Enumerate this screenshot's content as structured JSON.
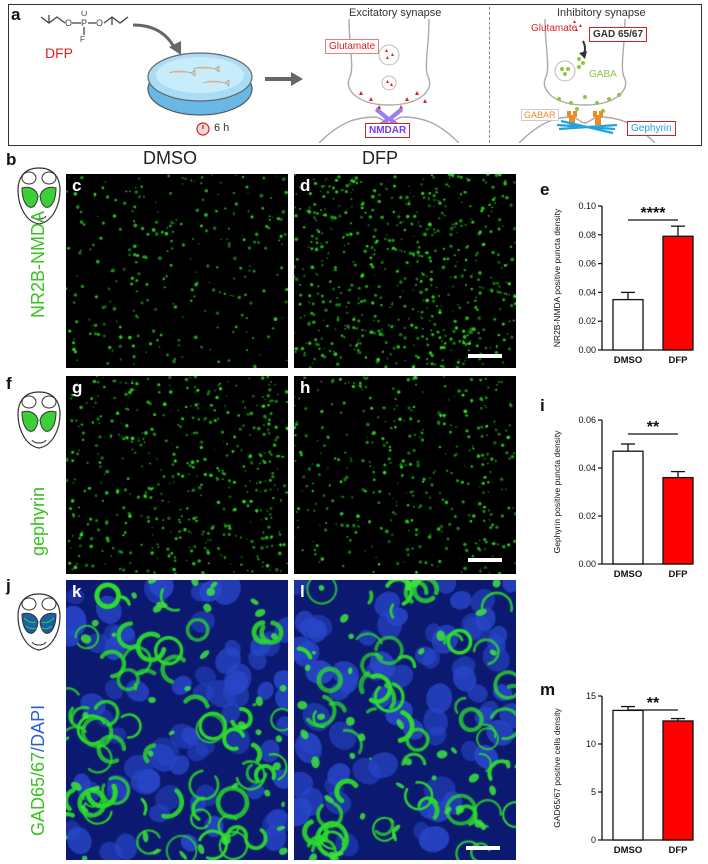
{
  "panel_a": {
    "letter": "a",
    "dfp_label": "DFP",
    "dfp_f": "F",
    "duration": "6 h",
    "excitatory_title": "Excitatory synapse",
    "inhibitory_title": "Inhibitory synapse",
    "glutamate_exc": "Glutamate",
    "glutamate_inh": "Glutamate",
    "nmdar": "NMDAR",
    "gad": "GAD 65/67",
    "gaba": "GABA",
    "gabar": "GABAR",
    "gephyrin": "Gephyrin",
    "colors": {
      "red": "#d92020",
      "green": "#8dc63f",
      "purple": "#8b5cf6",
      "orange": "#f08a24",
      "blue": "#1fa3e0"
    }
  },
  "columns": {
    "dmso": "DMSO",
    "dfp": "DFP"
  },
  "rows": [
    {
      "schematic_letter": "b",
      "label": "NR2B-NMDA",
      "img_left": "c",
      "img_right": "d",
      "chart_letter": "e"
    },
    {
      "schematic_letter": "f",
      "label": "gephyrin",
      "img_left": "g",
      "img_right": "h",
      "chart_letter": "i"
    },
    {
      "schematic_letter": "j",
      "label_green": "GAD65/67",
      "label_blue": "/DAPI",
      "img_left": "k",
      "img_right": "l",
      "chart_letter": "m"
    }
  ],
  "chart_data": [
    {
      "type": "bar",
      "categories": [
        "DMSO",
        "DFP"
      ],
      "values": [
        0.035,
        0.079
      ],
      "errors": [
        0.005,
        0.007
      ],
      "ylabel": "NR2B-NMDA positive puncta density",
      "ylim": [
        0,
        0.1
      ],
      "yticks": [
        "0.00",
        "0.02",
        "0.04",
        "0.06",
        "0.08",
        "0.10"
      ],
      "significance": "****",
      "colors": [
        "#ffffff",
        "#ff0000"
      ]
    },
    {
      "type": "bar",
      "categories": [
        "DMSO",
        "DFP"
      ],
      "values": [
        0.047,
        0.036
      ],
      "errors": [
        0.003,
        0.0025
      ],
      "ylabel": "Gephyrin positive puncta density",
      "ylim": [
        0,
        0.06
      ],
      "yticks": [
        "0.00",
        "0.02",
        "0.04",
        "0.06"
      ],
      "significance": "**",
      "colors": [
        "#ffffff",
        "#ff0000"
      ]
    },
    {
      "type": "bar",
      "categories": [
        "DMSO",
        "DFP"
      ],
      "values": [
        13.5,
        12.4
      ],
      "errors": [
        0.4,
        0.25
      ],
      "ylabel": "GAD65/67 positive cells density",
      "ylim": [
        0,
        15
      ],
      "yticks": [
        "0",
        "5",
        "10",
        "15"
      ],
      "significance": "**",
      "colors": [
        "#ffffff",
        "#ff0000"
      ]
    }
  ]
}
